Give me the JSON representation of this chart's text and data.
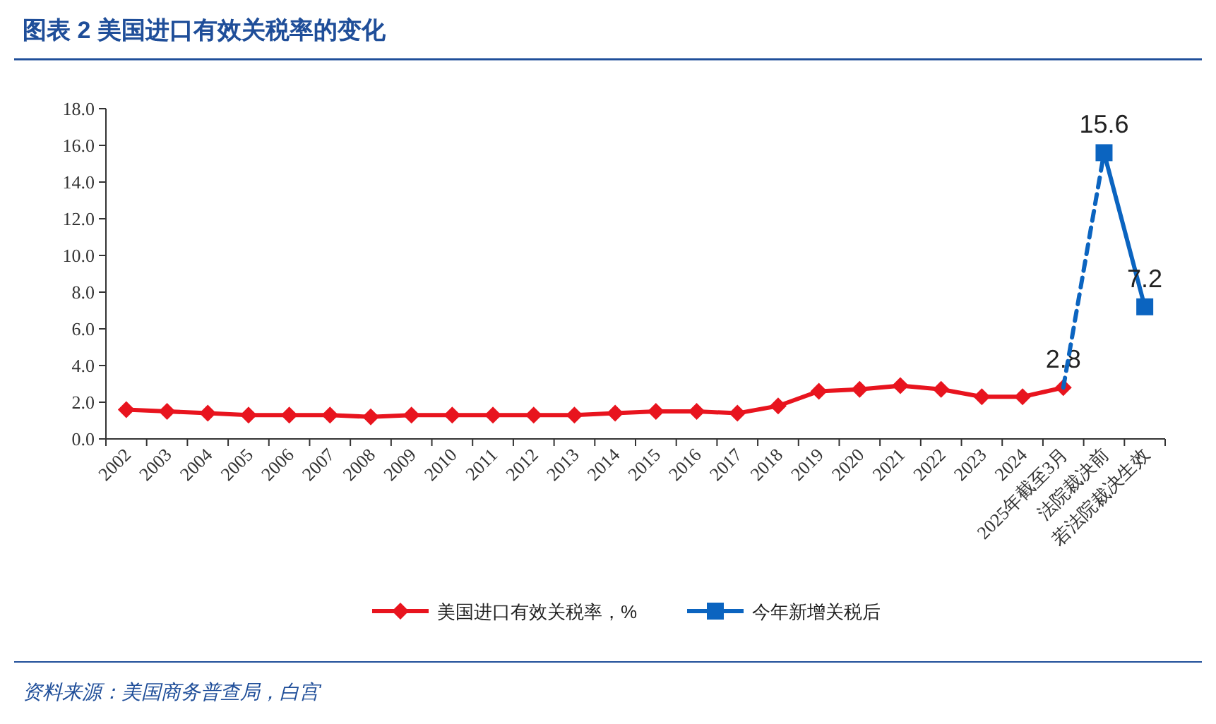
{
  "chart_data": {
    "type": "line",
    "title": "图表 2   美国进口有效关税率的变化",
    "categories": [
      "2002",
      "2003",
      "2004",
      "2005",
      "2006",
      "2007",
      "2008",
      "2009",
      "2010",
      "2011",
      "2012",
      "2013",
      "2014",
      "2015",
      "2016",
      "2017",
      "2018",
      "2019",
      "2020",
      "2021",
      "2022",
      "2023",
      "2024",
      "2025年截至3月",
      "法院裁决前",
      "若法院裁决生效"
    ],
    "series": [
      {
        "name": "美国进口有效关税率，%",
        "color": "#e8141e",
        "marker": "diamond",
        "line_style": "solid",
        "values": [
          1.6,
          1.5,
          1.4,
          1.3,
          1.3,
          1.3,
          1.2,
          1.3,
          1.3,
          1.3,
          1.3,
          1.3,
          1.4,
          1.5,
          1.5,
          1.4,
          1.8,
          2.6,
          2.7,
          2.9,
          2.7,
          2.3,
          2.3,
          2.8,
          null,
          null
        ],
        "value_labels": [
          null,
          null,
          null,
          null,
          null,
          null,
          null,
          null,
          null,
          null,
          null,
          null,
          null,
          null,
          null,
          null,
          null,
          null,
          null,
          null,
          null,
          null,
          null,
          "2.8",
          null,
          null
        ]
      },
      {
        "color": "#0b64c0",
        "marker": "none",
        "line_style": "dashed",
        "values": [
          null,
          null,
          null,
          null,
          null,
          null,
          null,
          null,
          null,
          null,
          null,
          null,
          null,
          null,
          null,
          null,
          null,
          null,
          null,
          null,
          null,
          null,
          null,
          2.8,
          15.6,
          null
        ]
      },
      {
        "name": "今年新增关税后",
        "color": "#0b64c0",
        "marker": "square",
        "line_style": "solid",
        "values": [
          null,
          null,
          null,
          null,
          null,
          null,
          null,
          null,
          null,
          null,
          null,
          null,
          null,
          null,
          null,
          null,
          null,
          null,
          null,
          null,
          null,
          null,
          null,
          null,
          15.6,
          7.2
        ],
        "value_labels": [
          null,
          null,
          null,
          null,
          null,
          null,
          null,
          null,
          null,
          null,
          null,
          null,
          null,
          null,
          null,
          null,
          null,
          null,
          null,
          null,
          null,
          null,
          null,
          null,
          "15.6",
          "7.2"
        ]
      }
    ],
    "ylim": [
      0,
      18
    ],
    "yticks": [
      {
        "value": 0,
        "label": "0.0"
      },
      {
        "value": 2,
        "label": "2.0"
      },
      {
        "value": 4,
        "label": "4.0"
      },
      {
        "value": 6,
        "label": "6.0"
      },
      {
        "value": 8,
        "label": "8.0"
      },
      {
        "value": 10,
        "label": "10.0"
      },
      {
        "value": 12,
        "label": "12.0"
      },
      {
        "value": 14,
        "label": "14.0"
      },
      {
        "value": 16,
        "label": "16.0"
      },
      {
        "value": 18,
        "label": "18.0"
      }
    ],
    "grid": false,
    "legend": "bottom",
    "annotations": [
      "资料来源：美国商务普查局，白宫"
    ]
  }
}
